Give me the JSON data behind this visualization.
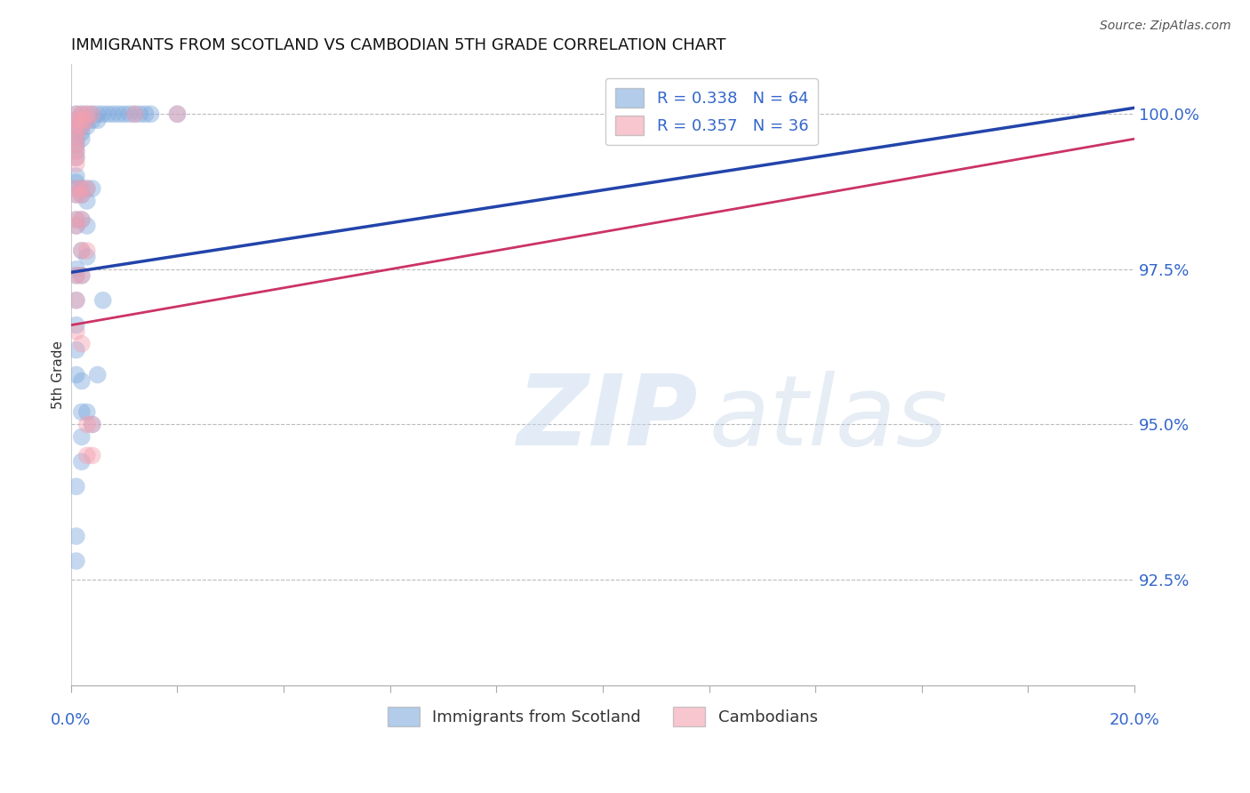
{
  "title": "IMMIGRANTS FROM SCOTLAND VS CAMBODIAN 5TH GRADE CORRELATION CHART",
  "source": "Source: ZipAtlas.com",
  "ylabel": "5th Grade",
  "ylabel_right_labels": [
    "100.0%",
    "97.5%",
    "95.0%",
    "92.5%"
  ],
  "ylabel_right_values": [
    1.0,
    0.975,
    0.95,
    0.925
  ],
  "xlim": [
    0.0,
    0.2
  ],
  "ylim": [
    0.908,
    1.008
  ],
  "grid_color": "#bbbbbb",
  "legend1_label": "R = 0.338   N = 64",
  "legend2_label": "R = 0.357   N = 36",
  "legend_label1": "Immigrants from Scotland",
  "legend_label2": "Cambodians",
  "blue_color": "#7faadd",
  "pink_color": "#f4a0b0",
  "blue_line_color": "#2244aa",
  "pink_line_color": "#cc3366",
  "text_color": "#3366cc",
  "scotland_points": [
    [
      0.001,
      1.0
    ],
    [
      0.001,
      0.999
    ],
    [
      0.001,
      0.998
    ],
    [
      0.001,
      0.997
    ],
    [
      0.001,
      0.996
    ],
    [
      0.001,
      0.995
    ],
    [
      0.001,
      0.994
    ],
    [
      0.001,
      0.993
    ],
    [
      0.002,
      1.0
    ],
    [
      0.002,
      0.999
    ],
    [
      0.002,
      0.998
    ],
    [
      0.002,
      0.997
    ],
    [
      0.002,
      0.996
    ],
    [
      0.003,
      1.0
    ],
    [
      0.003,
      0.999
    ],
    [
      0.003,
      0.998
    ],
    [
      0.004,
      1.0
    ],
    [
      0.004,
      0.999
    ],
    [
      0.005,
      1.0
    ],
    [
      0.005,
      0.999
    ],
    [
      0.006,
      1.0
    ],
    [
      0.007,
      1.0
    ],
    [
      0.008,
      1.0
    ],
    [
      0.009,
      1.0
    ],
    [
      0.01,
      1.0
    ],
    [
      0.011,
      1.0
    ],
    [
      0.012,
      1.0
    ],
    [
      0.013,
      1.0
    ],
    [
      0.014,
      1.0
    ],
    [
      0.015,
      1.0
    ],
    [
      0.001,
      0.99
    ],
    [
      0.001,
      0.989
    ],
    [
      0.001,
      0.988
    ],
    [
      0.001,
      0.987
    ],
    [
      0.002,
      0.988
    ],
    [
      0.002,
      0.987
    ],
    [
      0.003,
      0.988
    ],
    [
      0.003,
      0.986
    ],
    [
      0.004,
      0.988
    ],
    [
      0.001,
      0.983
    ],
    [
      0.001,
      0.982
    ],
    [
      0.002,
      0.983
    ],
    [
      0.003,
      0.982
    ],
    [
      0.002,
      0.978
    ],
    [
      0.003,
      0.977
    ],
    [
      0.001,
      0.975
    ],
    [
      0.001,
      0.974
    ],
    [
      0.002,
      0.974
    ],
    [
      0.001,
      0.97
    ],
    [
      0.001,
      0.966
    ],
    [
      0.001,
      0.962
    ],
    [
      0.001,
      0.958
    ],
    [
      0.002,
      0.957
    ],
    [
      0.002,
      0.952
    ],
    [
      0.002,
      0.948
    ],
    [
      0.002,
      0.944
    ],
    [
      0.003,
      0.952
    ],
    [
      0.004,
      0.95
    ],
    [
      0.005,
      0.958
    ],
    [
      0.006,
      0.97
    ],
    [
      0.001,
      0.94
    ],
    [
      0.001,
      0.932
    ],
    [
      0.001,
      0.928
    ],
    [
      0.02,
      1.0
    ]
  ],
  "cambodian_points": [
    [
      0.001,
      1.0
    ],
    [
      0.001,
      0.999
    ],
    [
      0.001,
      0.998
    ],
    [
      0.001,
      0.997
    ],
    [
      0.001,
      0.996
    ],
    [
      0.001,
      0.995
    ],
    [
      0.001,
      0.994
    ],
    [
      0.001,
      0.993
    ],
    [
      0.001,
      0.992
    ],
    [
      0.002,
      1.0
    ],
    [
      0.002,
      0.999
    ],
    [
      0.002,
      0.998
    ],
    [
      0.003,
      1.0
    ],
    [
      0.003,
      0.999
    ],
    [
      0.004,
      1.0
    ],
    [
      0.001,
      0.988
    ],
    [
      0.001,
      0.987
    ],
    [
      0.002,
      0.988
    ],
    [
      0.002,
      0.987
    ],
    [
      0.003,
      0.988
    ],
    [
      0.001,
      0.983
    ],
    [
      0.001,
      0.982
    ],
    [
      0.002,
      0.983
    ],
    [
      0.002,
      0.978
    ],
    [
      0.003,
      0.978
    ],
    [
      0.001,
      0.974
    ],
    [
      0.002,
      0.974
    ],
    [
      0.001,
      0.97
    ],
    [
      0.001,
      0.965
    ],
    [
      0.002,
      0.963
    ],
    [
      0.003,
      0.95
    ],
    [
      0.003,
      0.945
    ],
    [
      0.004,
      0.95
    ],
    [
      0.004,
      0.945
    ],
    [
      0.02,
      1.0
    ],
    [
      0.012,
      1.0
    ]
  ],
  "scotland_line": {
    "x": [
      0.0,
      0.2
    ],
    "y": [
      0.9745,
      1.001
    ]
  },
  "cambodian_line": {
    "x": [
      0.0,
      0.2
    ],
    "y": [
      0.966,
      0.996
    ]
  }
}
